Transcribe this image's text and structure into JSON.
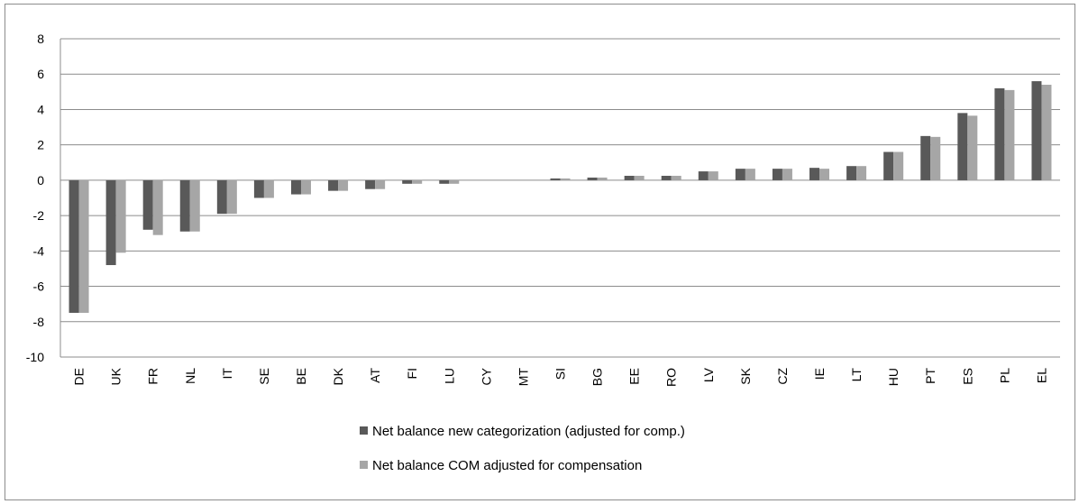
{
  "chart_data": {
    "type": "bar",
    "title": "",
    "xlabel": "",
    "ylabel": "",
    "ylim": [
      -10,
      8
    ],
    "yticks": [
      -10,
      -8,
      -6,
      -4,
      -2,
      0,
      2,
      4,
      6,
      8
    ],
    "grid": true,
    "legend_position": "bottom-center",
    "categories": [
      "DE",
      "UK",
      "FR",
      "NL",
      "IT",
      "SE",
      "BE",
      "DK",
      "AT",
      "FI",
      "LU",
      "CY",
      "MT",
      "SI",
      "BG",
      "EE",
      "RO",
      "LV",
      "SK",
      "CZ",
      "IE",
      "LT",
      "HU",
      "PT",
      "ES",
      "PL",
      "EL"
    ],
    "series": [
      {
        "name": "Net balance new categorization (adjusted for comp.)",
        "color": "#595959",
        "values": [
          -7.5,
          -4.8,
          -2.8,
          -2.9,
          -1.9,
          -1.0,
          -0.8,
          -0.6,
          -0.5,
          -0.2,
          -0.2,
          0,
          0,
          0.1,
          0.15,
          0.25,
          0.25,
          0.5,
          0.65,
          0.65,
          0.7,
          0.8,
          1.6,
          2.5,
          3.8,
          5.2,
          5.6
        ]
      },
      {
        "name": "Net balance COM adjusted for compensation",
        "color": "#a6a6a6",
        "values": [
          -7.5,
          -4.1,
          -3.1,
          -2.9,
          -1.9,
          -1.0,
          -0.8,
          -0.6,
          -0.5,
          -0.2,
          -0.2,
          0,
          0,
          0.1,
          0.15,
          0.25,
          0.25,
          0.5,
          0.65,
          0.65,
          0.65,
          0.8,
          1.6,
          2.45,
          3.65,
          5.1,
          5.4
        ]
      }
    ]
  }
}
